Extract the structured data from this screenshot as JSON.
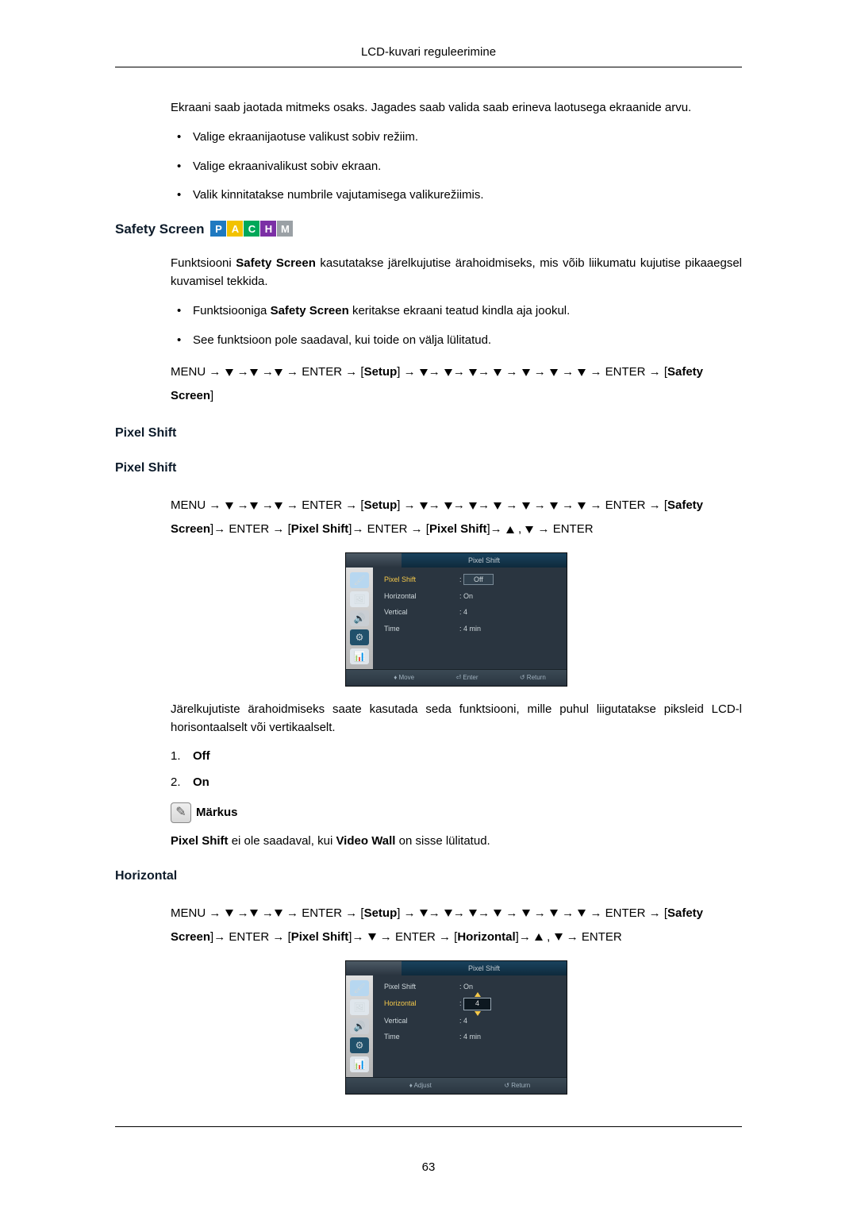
{
  "header": {
    "title": "LCD-kuvari reguleerimine"
  },
  "intro": {
    "para": "Ekraani saab jaotada mitmeks osaks. Jagades saab valida saab erineva laotusega ekraanide arvu.",
    "bullets": [
      "Valige ekraanijaotuse valikust sobiv režiim.",
      "Valige ekraanivalikust sobiv ekraan.",
      "Valik kinnitatakse numbrile vajutamisega valikurežiimis."
    ]
  },
  "safety": {
    "heading": "Safety Screen",
    "badges": [
      {
        "letter": "P",
        "bg": "#1f79c0"
      },
      {
        "letter": "A",
        "bg": "#f2c200"
      },
      {
        "letter": "C",
        "bg": "#00a859"
      },
      {
        "letter": "H",
        "bg": "#7b2fa5"
      },
      {
        "letter": "M",
        "bg": "#9aa0a5"
      }
    ],
    "para_prefix": "Funktsiooni ",
    "para_bold": "Safety Screen",
    "para_suffix": " kasutatakse järelkujutise ärahoidmiseks, mis võib liikumatu kujutise pikaaegsel kuvamisel tekkida.",
    "bullet1_prefix": "Funktsiooniga ",
    "bullet1_bold": "Safety Screen",
    "bullet1_suffix": " keritakse ekraani teatud kindla aja jookul.",
    "bullet2": "See funktsioon pole saadaval, kui toide on välja lülitatud.",
    "nav": {
      "menu": "MENU",
      "enter": "ENTER",
      "setup": "Setup",
      "safety_screen": "Safety Screen"
    }
  },
  "pixel_shift": {
    "h1": "Pixel Shift",
    "h2": "Pixel Shift",
    "nav": {
      "menu": "MENU",
      "enter": "ENTER",
      "setup": "Setup",
      "safety_screen": "Safety Screen",
      "pixel_shift": "Pixel Shift"
    },
    "osd1": {
      "title": "Pixel Shift",
      "rows": [
        {
          "label": "Pixel Shift",
          "value": "Off",
          "boxed": true,
          "highlight": true
        },
        {
          "label": "Horizontal",
          "value": "On",
          "extra_below": true
        },
        {
          "label": "Vertical",
          "value": "4"
        },
        {
          "label": "Time",
          "value": "4 min"
        }
      ],
      "footer": [
        "♦ Move",
        "⏎ Enter",
        "↺ Return"
      ]
    },
    "para2": "Järelkujutiste ärahoidmiseks saate kasutada seda funktsiooni, mille puhul liigutatakse piksleid LCD-l horisontaalselt või vertikaalselt.",
    "ol": [
      {
        "n": "1.",
        "label": "Off"
      },
      {
        "n": "2.",
        "label": "On"
      }
    ],
    "note_label": "Märkus",
    "note_text_b1": "Pixel Shift",
    "note_text_mid": " ei ole saadaval, kui ",
    "note_text_b2": "Video Wall",
    "note_text_suffix": " on sisse lülitatud."
  },
  "horizontal": {
    "heading": "Horizontal",
    "nav": {
      "menu": "MENU",
      "enter": "ENTER",
      "setup": "Setup",
      "safety_screen": "Safety Screen",
      "pixel_shift": "Pixel Shift",
      "horizontal": "Horizontal"
    },
    "osd2": {
      "title": "Pixel Shift",
      "rows": [
        {
          "label": "Pixel Shift",
          "value": "On"
        },
        {
          "label": "Horizontal",
          "value": "4",
          "spinner": true,
          "highlight": true
        },
        {
          "label": "Vertical",
          "value": "4"
        },
        {
          "label": "Time",
          "value": "4 min"
        }
      ],
      "footer": [
        "♦ Adjust",
        "↺ Return"
      ]
    }
  },
  "sidebar_icons": [
    {
      "glyph": "🖌",
      "bg": "#b7d7f0"
    },
    {
      "glyph": "🖼",
      "bg": "#dfe6ec"
    },
    {
      "glyph": "🔊",
      "bg": "#c9ced3"
    },
    {
      "glyph": "⚙",
      "bg": "#20506b"
    },
    {
      "glyph": "📊",
      "bg": "#dfe6ec"
    }
  ],
  "page_num": "63"
}
